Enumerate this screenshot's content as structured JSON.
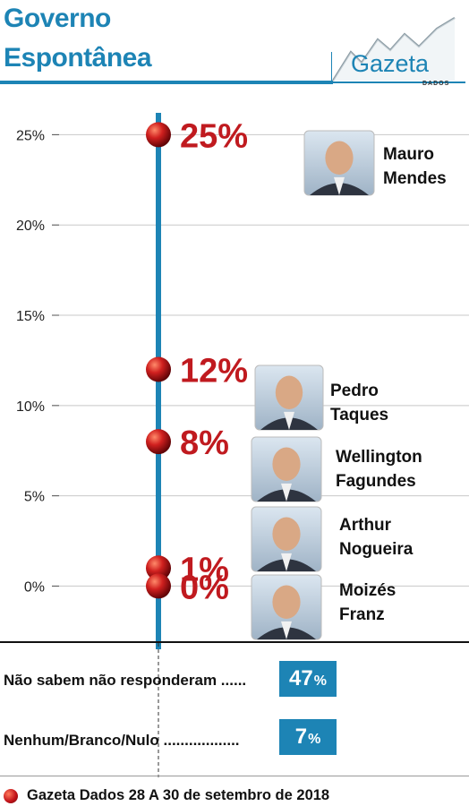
{
  "header": {
    "title_line1": "Governo",
    "title_line2": "Espontânea",
    "logo_text": "Gazeta",
    "logo_subtext": "DADOS"
  },
  "colors": {
    "accent": "#1d84b5",
    "value_red": "#c01a1f",
    "grid": "#c8c8c8"
  },
  "chart_data": {
    "type": "scatter",
    "title": "Governo Espontânea",
    "ylim": [
      -3.5,
      27.5
    ],
    "y_ticks": [
      "0%",
      "5%",
      "10%",
      "15%",
      "20%",
      "25%"
    ],
    "y_tick_values": [
      0,
      5,
      10,
      15,
      20,
      25
    ],
    "points": [
      {
        "name_line1": "Mauro",
        "name_line2": "Mendes",
        "value": 25,
        "label": "25%"
      },
      {
        "name_line1": "Pedro",
        "name_line2": "Taques",
        "value": 12,
        "label": "12%"
      },
      {
        "name_line1": "Wellington",
        "name_line2": "Fagundes",
        "value": 8,
        "label": "8%"
      },
      {
        "name_line1": "Arthur",
        "name_line2": "Nogueira",
        "value": 1,
        "label": "1%"
      },
      {
        "name_line1": "Moizés",
        "name_line2": "Franz",
        "value": 0,
        "label": "0%"
      }
    ]
  },
  "summary": [
    {
      "label": "Não sabem não responderam ......",
      "value": "47",
      "unit": "%"
    },
    {
      "label": "Nenhum/Branco/Nulo ..................",
      "value": "7",
      "unit": "%"
    }
  ],
  "footer": {
    "source": "Gazeta Dados 28 A 30 de setembro de 2018"
  }
}
